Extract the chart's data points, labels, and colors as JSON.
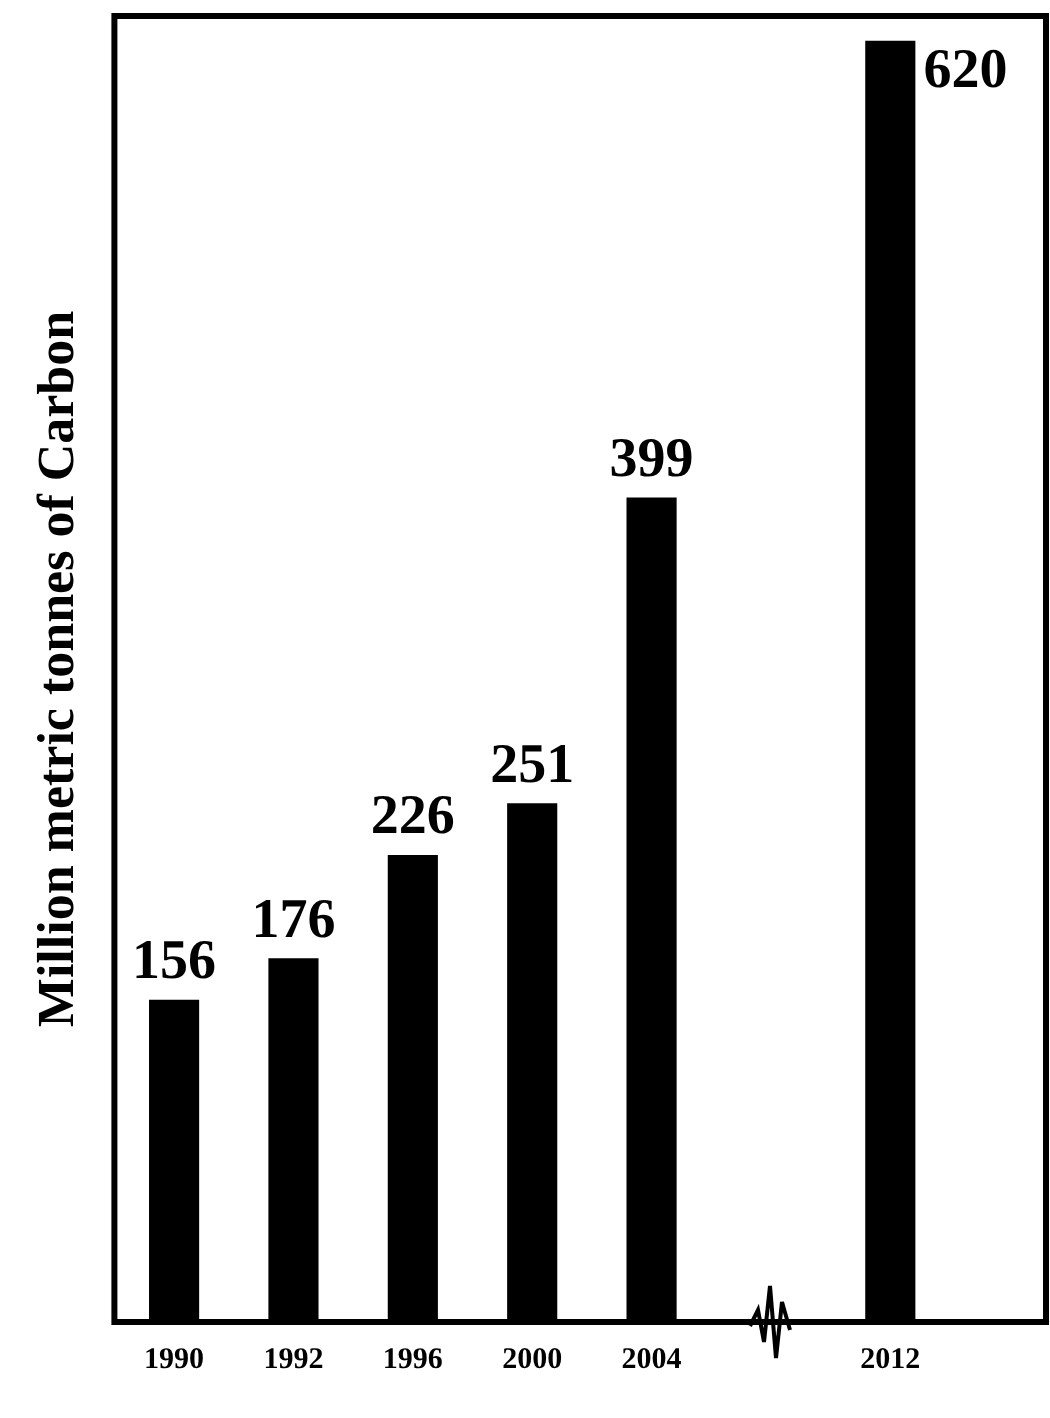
{
  "chart_data": {
    "type": "bar",
    "ylabel": "Million metric tonnes of Carbon",
    "categories": [
      "1990",
      "1992",
      "1996",
      "2000",
      "2004",
      null,
      "2012"
    ],
    "values": [
      156,
      176,
      226,
      251,
      399,
      null,
      620
    ],
    "color": "#000000",
    "ylim": [
      0,
      632
    ],
    "tick_labels": "x",
    "data_labels": true,
    "grid": false,
    "legend": false
  }
}
